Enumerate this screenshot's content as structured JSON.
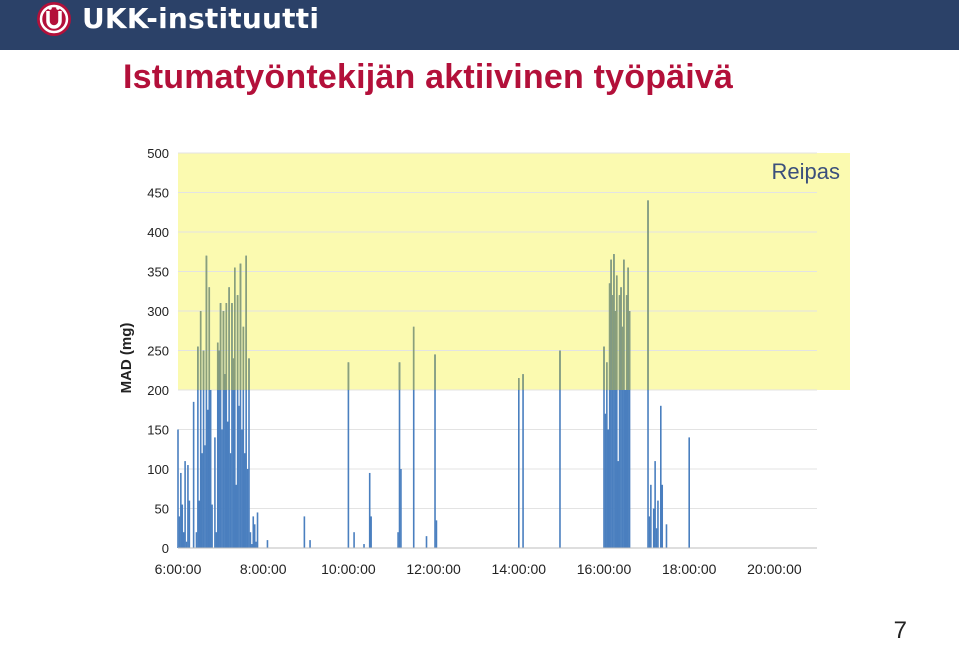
{
  "header": {
    "logo_text": "UKK-instituutti",
    "colors": {
      "bar": "#2b4168",
      "logo_mark": "#b3103a"
    }
  },
  "title": "Istumatyöntekijän aktiivinen työpäivä",
  "page_number": "7",
  "chart_data": {
    "type": "bar",
    "title": "",
    "xlabel": "",
    "ylabel": "MAD (mg)",
    "ylim": [
      0,
      500
    ],
    "yticks": [
      0,
      50,
      100,
      150,
      200,
      250,
      300,
      350,
      400,
      450,
      500
    ],
    "xlim": [
      "06:00",
      "21:00"
    ],
    "xticks": [
      "6:00:00",
      "8:00:00",
      "10:00:00",
      "12:00:00",
      "14:00:00",
      "16:00:00",
      "18:00:00",
      "20:00:00"
    ],
    "grid": true,
    "annotation_band": {
      "label": "Reipas",
      "from": 200,
      "to": 500,
      "color": "#fbfab0"
    },
    "bar_color": "#4a7fbf",
    "overlap_color": "#8a9f7a",
    "series": [
      {
        "x": [
          "06:00",
          "06:02",
          "06:04",
          "06:06",
          "06:08",
          "06:10",
          "06:12",
          "06:14",
          "06:16",
          "06:18",
          "06:20",
          "06:22",
          "06:24",
          "06:26",
          "06:28",
          "06:30",
          "06:32",
          "06:34",
          "06:36",
          "06:38",
          "06:40",
          "06:42",
          "06:44",
          "06:46",
          "06:48",
          "06:50",
          "06:52",
          "06:54",
          "06:56",
          "06:58",
          "07:00",
          "07:02",
          "07:04",
          "07:06",
          "07:08",
          "07:10",
          "07:12",
          "07:14",
          "07:16",
          "07:18",
          "07:20",
          "07:22",
          "07:24",
          "07:26",
          "07:28",
          "07:30",
          "07:32",
          "07:34",
          "07:36",
          "07:38",
          "07:40",
          "07:42",
          "07:44",
          "07:46",
          "07:48",
          "07:50",
          "07:52",
          "07:54",
          "07:56",
          "07:58",
          "08:00",
          "08:02",
          "08:04",
          "08:06",
          "08:08",
          "08:10",
          "08:12",
          "08:14",
          "08:16",
          "08:18",
          "08:20",
          "08:22",
          "08:24",
          "08:26",
          "08:28",
          "08:30",
          "08:32",
          "08:34",
          "08:36",
          "08:38",
          "08:40",
          "08:42",
          "08:44",
          "08:46",
          "08:48",
          "08:50",
          "08:52",
          "08:54",
          "08:56",
          "08:58",
          "09:00",
          "09:02",
          "09:04",
          "09:06",
          "09:08",
          "09:10",
          "09:12",
          "09:14",
          "09:16",
          "09:18",
          "09:20",
          "09:22",
          "09:24",
          "09:26",
          "09:28",
          "09:30",
          "09:32",
          "09:34",
          "09:36",
          "09:38",
          "09:40",
          "09:42",
          "09:44",
          "09:46",
          "09:48",
          "09:50",
          "09:52",
          "09:54",
          "09:56",
          "09:58",
          "10:00",
          "10:02",
          "10:04",
          "10:06",
          "10:08",
          "10:10",
          "10:12",
          "10:14",
          "10:16",
          "10:18",
          "10:20",
          "10:22",
          "10:24",
          "10:26",
          "10:28",
          "10:30",
          "10:32",
          "10:34",
          "10:36",
          "10:38",
          "10:40",
          "10:42",
          "10:44",
          "10:46",
          "10:48",
          "10:50",
          "10:52",
          "10:54",
          "10:56",
          "10:58",
          "11:00",
          "11:02",
          "11:04",
          "11:06",
          "11:08",
          "11:10",
          "11:12",
          "11:14",
          "11:16",
          "11:18",
          "11:20",
          "11:22",
          "11:24",
          "11:26",
          "11:28",
          "11:30",
          "11:32",
          "11:34",
          "11:36",
          "11:38",
          "11:40",
          "11:42",
          "11:44",
          "11:46",
          "11:48",
          "11:50",
          "11:52",
          "11:54",
          "11:56",
          "11:58",
          "12:00",
          "12:02",
          "12:04",
          "12:06",
          "12:08",
          "12:10",
          "12:12",
          "12:14",
          "12:16",
          "12:18",
          "12:20",
          "12:22",
          "12:24",
          "12:26",
          "12:28",
          "12:30",
          "12:32",
          "12:34",
          "12:36",
          "12:38",
          "12:40",
          "12:42",
          "12:44",
          "12:46",
          "12:48",
          "12:50",
          "12:52",
          "12:54",
          "12:56",
          "12:58",
          "13:00",
          "13:02",
          "13:04",
          "13:06",
          "13:08",
          "13:10",
          "13:12",
          "13:14",
          "13:16",
          "13:18",
          "13:20",
          "13:22",
          "13:24",
          "13:26",
          "13:28",
          "13:30",
          "13:32",
          "13:34",
          "13:36",
          "13:38",
          "13:40",
          "13:42",
          "13:44",
          "13:46",
          "13:48",
          "13:50",
          "13:52",
          "13:54",
          "13:56",
          "13:58",
          "14:00",
          "14:02",
          "14:04",
          "14:06",
          "14:08",
          "14:10",
          "14:12",
          "14:14",
          "14:16",
          "14:18",
          "14:20",
          "14:22",
          "14:24",
          "14:26",
          "14:28",
          "14:30",
          "14:32",
          "14:34",
          "14:36",
          "14:38",
          "14:40",
          "14:42",
          "14:44",
          "14:46",
          "14:48",
          "14:50",
          "14:52",
          "14:54",
          "14:56",
          "14:58",
          "15:00",
          "15:02",
          "15:04",
          "15:06",
          "15:08",
          "15:10",
          "15:12",
          "15:14",
          "15:16",
          "15:18",
          "15:20",
          "15:22",
          "15:24",
          "15:26",
          "15:28",
          "15:30",
          "15:32",
          "15:34",
          "15:36",
          "15:38",
          "15:40",
          "15:42",
          "15:44",
          "15:46",
          "15:48",
          "15:50",
          "15:52",
          "15:54",
          "15:56",
          "15:58",
          "16:00",
          "16:02",
          "16:04",
          "16:06",
          "16:08",
          "16:10",
          "16:12",
          "16:14",
          "16:16",
          "16:18",
          "16:20",
          "16:22",
          "16:24",
          "16:26",
          "16:28",
          "16:30",
          "16:32",
          "16:34",
          "16:36",
          "16:38",
          "16:40",
          "16:42",
          "16:44",
          "16:46",
          "16:48",
          "16:50",
          "16:52",
          "16:54",
          "16:56",
          "16:58",
          "17:00",
          "17:02",
          "17:04",
          "17:06",
          "17:08",
          "17:10",
          "17:12",
          "17:14",
          "17:16",
          "17:18",
          "17:20",
          "17:22",
          "17:24",
          "17:26",
          "17:28",
          "17:30",
          "17:32",
          "17:34",
          "17:36",
          "17:38",
          "17:40",
          "17:42",
          "17:44",
          "17:46",
          "17:48",
          "17:50",
          "17:52",
          "17:54",
          "17:56",
          "17:58",
          "18:00",
          "18:02",
          "18:04",
          "18:06",
          "18:08",
          "18:10",
          "18:12",
          "18:14",
          "18:16",
          "18:18",
          "18:20",
          "18:22",
          "18:24",
          "18:26",
          "18:28",
          "18:30",
          "18:32",
          "18:34",
          "18:36",
          "18:38",
          "18:40",
          "18:42",
          "18:44",
          "18:46",
          "18:48",
          "18:50",
          "18:52",
          "18:54",
          "18:56",
          "18:58",
          "19:00",
          "19:02",
          "19:04",
          "19:06",
          "19:08",
          "19:10",
          "19:12",
          "19:14",
          "19:16",
          "19:18",
          "19:20",
          "19:22",
          "19:24",
          "19:26",
          "19:28",
          "19:30",
          "19:32",
          "19:34",
          "19:36",
          "19:38",
          "19:40",
          "19:42",
          "19:44",
          "19:46",
          "19:48",
          "19:50",
          "19:52",
          "19:54",
          "19:56",
          "19:58",
          "20:00",
          "20:02",
          "20:04",
          "20:06",
          "20:08",
          "20:10",
          "20:12",
          "20:14",
          "20:16",
          "20:18",
          "20:20",
          "20:22",
          "20:24",
          "20:26",
          "20:28",
          "20:30",
          "20:32",
          "20:34",
          "20:36",
          "20:38",
          "20:40",
          "20:42",
          "20:44",
          "20:46",
          "20:48",
          "20:50",
          "20:52",
          "20:54",
          "20:56",
          "20:58"
        ],
        "values": [
          150,
          40,
          95,
          55,
          20,
          110,
          8,
          105,
          60,
          0,
          0,
          185,
          0,
          20,
          255,
          60,
          300,
          120,
          250,
          130,
          370,
          175,
          330,
          200,
          55,
          0,
          140,
          20,
          260,
          250,
          310,
          150,
          300,
          220,
          310,
          160,
          330,
          120,
          310,
          240,
          355,
          80,
          320,
          180,
          360,
          150,
          280,
          120,
          370,
          100,
          240,
          20,
          5,
          40,
          30,
          8,
          45,
          0,
          0,
          0,
          0,
          0,
          0,
          10,
          0,
          0,
          0,
          0,
          0,
          0,
          0,
          0,
          0,
          0,
          0,
          0,
          0,
          0,
          0,
          0,
          0,
          0,
          0,
          0,
          0,
          0,
          0,
          0,
          0,
          40,
          0,
          0,
          0,
          10,
          0,
          0,
          0,
          0,
          0,
          0,
          0,
          0,
          0,
          0,
          0,
          0,
          0,
          0,
          0,
          0,
          0,
          0,
          0,
          0,
          0,
          0,
          0,
          0,
          0,
          0,
          235,
          0,
          0,
          0,
          20,
          0,
          0,
          0,
          0,
          0,
          0,
          5,
          0,
          0,
          0,
          95,
          40,
          0,
          0,
          0,
          0,
          0,
          0,
          0,
          0,
          0,
          0,
          0,
          0,
          0,
          0,
          0,
          0,
          0,
          0,
          20,
          235,
          100,
          0,
          0,
          0,
          0,
          0,
          0,
          0,
          0,
          280,
          0,
          0,
          0,
          0,
          0,
          0,
          0,
          0,
          15,
          0,
          0,
          0,
          0,
          0,
          245,
          35,
          0,
          0,
          0,
          0,
          0,
          0,
          0,
          0,
          0,
          0,
          0,
          0,
          0,
          0,
          0,
          0,
          0,
          0,
          0,
          0,
          0,
          0,
          0,
          0,
          0,
          0,
          0,
          0,
          0,
          0,
          0,
          0,
          0,
          0,
          0,
          0,
          0,
          0,
          0,
          0,
          0,
          0,
          0,
          0,
          0,
          0,
          0,
          0,
          0,
          0,
          0,
          0,
          0,
          0,
          0,
          0,
          0,
          215,
          0,
          0,
          220,
          0,
          0,
          0,
          0,
          0,
          0,
          0,
          0,
          0,
          0,
          0,
          0,
          0,
          0,
          0,
          0,
          0,
          0,
          0,
          0,
          0,
          0,
          0,
          0,
          0,
          250,
          0,
          0,
          0,
          0,
          0,
          0,
          0,
          0,
          0,
          0,
          0,
          0,
          0,
          0,
          0,
          0,
          0,
          0,
          0,
          0,
          0,
          0,
          0,
          0,
          0,
          0,
          0,
          0,
          0,
          0,
          255,
          170,
          235,
          150,
          335,
          365,
          320,
          372,
          300,
          345,
          110,
          320,
          330,
          280,
          365,
          200,
          320,
          355,
          300,
          0,
          0,
          0,
          0,
          0,
          0,
          0,
          0,
          0,
          0,
          0,
          0,
          440,
          40,
          80,
          0,
          50,
          110,
          25,
          60,
          0,
          180,
          80,
          0,
          0,
          30,
          0,
          0,
          0,
          0,
          0,
          0,
          0,
          0,
          0,
          0,
          0,
          0,
          0,
          0,
          0,
          140,
          0,
          0,
          0,
          0,
          0,
          0,
          0,
          0,
          0,
          0,
          0,
          0,
          0,
          0,
          0,
          0,
          0,
          0,
          0,
          0,
          0,
          0,
          0,
          0,
          0,
          0,
          0,
          0,
          0,
          0,
          0,
          0,
          0,
          0,
          0,
          0,
          0,
          0,
          0,
          0,
          0,
          0,
          0,
          0,
          0,
          0,
          0,
          0,
          0,
          0,
          0,
          0,
          0,
          0,
          0,
          0,
          0,
          0,
          0,
          0,
          0,
          0,
          0,
          0,
          0,
          0,
          0,
          0,
          0,
          0,
          0,
          0,
          0,
          0,
          0,
          0,
          0,
          0,
          0,
          0,
          0,
          0,
          0,
          0,
          0,
          0,
          0,
          0,
          0
        ]
      }
    ]
  }
}
